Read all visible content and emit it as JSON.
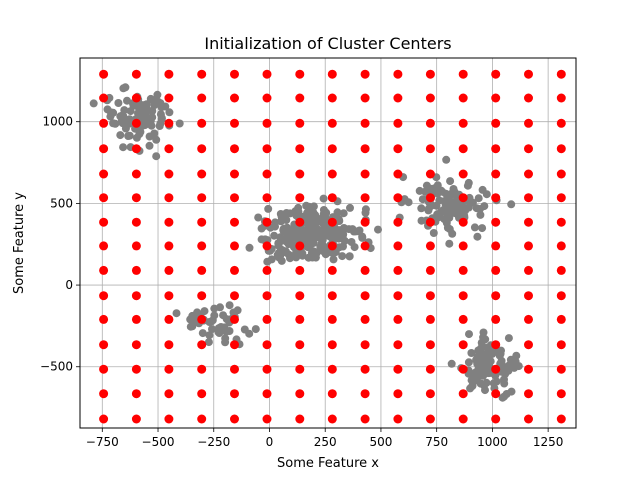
{
  "chart_data": {
    "type": "scatter",
    "title": "Initialization of Cluster Centers",
    "xlabel": "Some Feature x",
    "ylabel": "Some Feature y",
    "xlim": [
      -850,
      1375
    ],
    "ylim": [
      -875,
      1390
    ],
    "xticks": [
      -750,
      -500,
      -250,
      0,
      250,
      500,
      750,
      1000,
      1250
    ],
    "xtick_labels": [
      "−750",
      "−500",
      "−250",
      "0",
      "250",
      "500",
      "750",
      "1000",
      "1250"
    ],
    "yticks": [
      -500,
      0,
      500,
      1000
    ],
    "ytick_labels": [
      "−500",
      "0",
      "500",
      "1000"
    ],
    "grid": true,
    "series": [
      {
        "kind": "points",
        "color": "#808080",
        "clusters": [
          {
            "cx": -600,
            "cy": 1030,
            "sx": 80,
            "sy": 90,
            "n": 90
          },
          {
            "cx": 200,
            "cy": 310,
            "sx": 110,
            "sy": 95,
            "n": 260
          },
          {
            "cx": 810,
            "cy": 490,
            "sx": 90,
            "sy": 95,
            "n": 110
          },
          {
            "cx": 980,
            "cy": -500,
            "sx": 65,
            "sy": 85,
            "n": 110
          },
          {
            "cx": -240,
            "cy": -240,
            "sx": 80,
            "sy": 60,
            "n": 50
          }
        ]
      },
      {
        "kind": "grid-centers",
        "color": "#ff0000",
        "x": [
          -744,
          -597,
          -451,
          -304,
          -157,
          -11,
          136,
          282,
          429,
          576,
          722,
          869,
          1015,
          1162,
          1309
        ],
        "y": [
          1291,
          1145,
          990,
          835,
          680,
          535,
          385,
          240,
          90,
          -65,
          -210,
          -365,
          -515,
          -665,
          -820
        ]
      }
    ]
  }
}
